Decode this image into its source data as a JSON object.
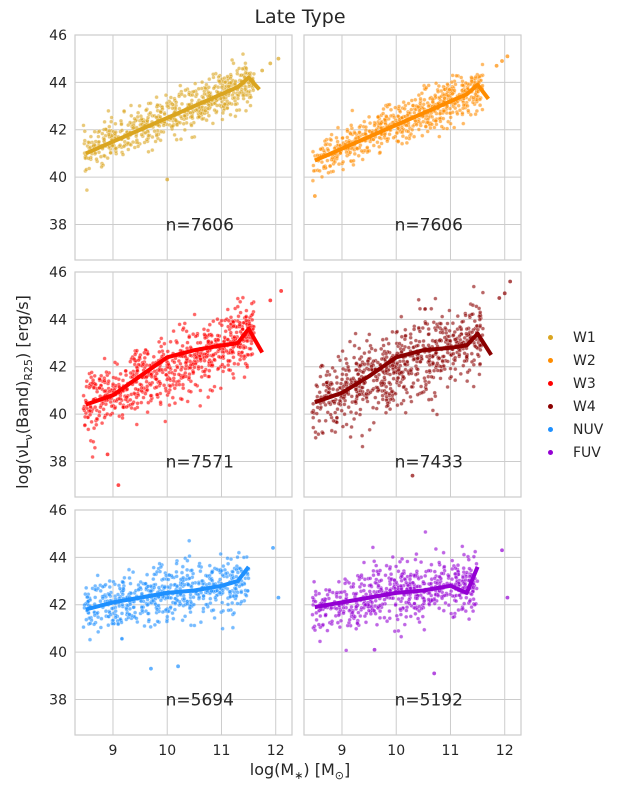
{
  "figure": {
    "title": "Late Type",
    "xlabel_main": "log(M",
    "xlabel_star": "∗",
    "xlabel_unit": ") [M",
    "xlabel_sun": "⊙",
    "xlabel_end": "]",
    "ylabel_main": "log(νL",
    "ylabel_nu": "ν",
    "ylabel_band": "(Band)",
    "ylabel_r25": "R25",
    "ylabel_unit": ") [erg/s]"
  },
  "legend": [
    {
      "label": "W1",
      "color": "#DAA520"
    },
    {
      "label": "W2",
      "color": "#FF8C00"
    },
    {
      "label": "W3",
      "color": "#FF0000"
    },
    {
      "label": "W4",
      "color": "#8B0000"
    },
    {
      "label": "NUV",
      "color": "#1E90FF"
    },
    {
      "label": "FUV",
      "color": "#9400D3"
    }
  ],
  "chart_data": {
    "type": "scatter",
    "xlim": [
      8.3,
      12.3
    ],
    "ylim": [
      36.5,
      46
    ],
    "xticks": [
      9,
      10,
      11,
      12
    ],
    "yticks": [
      38,
      40,
      42,
      44,
      46
    ],
    "grid": true,
    "legend_position": "right",
    "panels": [
      {
        "band": "W1",
        "color": "#DAA520",
        "count_label": "n=7606",
        "trend_x": [
          8.5,
          9.0,
          9.5,
          10.0,
          10.5,
          11.0,
          11.3,
          11.5,
          11.7
        ],
        "trend_y": [
          41.0,
          41.5,
          42.0,
          42.5,
          43.0,
          43.5,
          43.8,
          44.2,
          43.7
        ],
        "scatter": {
          "x_min": 8.45,
          "x_max": 11.6,
          "slope": 1.0,
          "intercept": 41.0,
          "x0": 8.5,
          "spread": 0.45,
          "n_points": 650,
          "outliers": [
            [
              11.9,
              44.8
            ],
            [
              12.05,
              45.0
            ],
            [
              11.75,
              44.5
            ],
            [
              10.0,
              39.9
            ]
          ]
        }
      },
      {
        "band": "W2",
        "color": "#FF8C00",
        "count_label": "n=7606",
        "trend_x": [
          8.5,
          9.0,
          9.5,
          10.0,
          10.5,
          11.0,
          11.3,
          11.5,
          11.7
        ],
        "trend_y": [
          40.7,
          41.2,
          41.7,
          42.2,
          42.7,
          43.2,
          43.5,
          43.9,
          43.3
        ],
        "scatter": {
          "x_min": 8.45,
          "x_max": 11.6,
          "slope": 1.0,
          "intercept": 40.7,
          "x0": 8.5,
          "spread": 0.45,
          "n_points": 650,
          "outliers": [
            [
              11.85,
              44.7
            ],
            [
              12.05,
              45.1
            ],
            [
              11.95,
              44.9
            ],
            [
              8.5,
              39.2
            ]
          ]
        }
      },
      {
        "band": "W3",
        "color": "#FF0000",
        "count_label": "n=7571",
        "trend_x": [
          8.5,
          9.0,
          9.5,
          10.0,
          10.5,
          11.0,
          11.3,
          11.5,
          11.75
        ],
        "trend_y": [
          40.4,
          40.8,
          41.6,
          42.4,
          42.7,
          42.9,
          43.0,
          43.6,
          42.6
        ],
        "scatter": {
          "x_min": 8.45,
          "x_max": 11.6,
          "slope": 0.95,
          "intercept": 40.4,
          "x0": 8.5,
          "spread": 0.7,
          "n_points": 750,
          "outliers": [
            [
              11.9,
              44.8
            ],
            [
              12.1,
              45.2
            ],
            [
              9.1,
              37.0
            ],
            [
              8.9,
              38.3
            ]
          ]
        }
      },
      {
        "band": "W4",
        "color": "#8B0000",
        "count_label": "n=7433",
        "trend_x": [
          8.5,
          9.0,
          9.5,
          10.0,
          10.5,
          11.0,
          11.3,
          11.5,
          11.75
        ],
        "trend_y": [
          40.5,
          40.9,
          41.6,
          42.4,
          42.7,
          42.8,
          42.9,
          43.4,
          42.5
        ],
        "scatter": {
          "x_min": 8.45,
          "x_max": 11.6,
          "slope": 0.95,
          "intercept": 40.5,
          "x0": 8.5,
          "spread": 0.8,
          "n_points": 750,
          "outliers": [
            [
              12.0,
              45.1
            ],
            [
              12.1,
              45.6
            ],
            [
              10.3,
              37.4
            ],
            [
              11.9,
              44.9
            ]
          ]
        }
      },
      {
        "band": "NUV",
        "color": "#1E90FF",
        "count_label": "n=5694",
        "trend_x": [
          8.5,
          9.0,
          9.5,
          10.0,
          10.5,
          11.0,
          11.3,
          11.5
        ],
        "trend_y": [
          41.8,
          42.1,
          42.3,
          42.5,
          42.6,
          42.8,
          43.0,
          43.6
        ],
        "scatter": {
          "x_min": 8.45,
          "x_max": 11.5,
          "slope": 0.4,
          "intercept": 41.8,
          "x0": 8.5,
          "spread": 0.6,
          "n_points": 600,
          "outliers": [
            [
              11.95,
              44.4
            ],
            [
              12.05,
              42.3
            ],
            [
              9.7,
              39.3
            ],
            [
              10.2,
              39.4
            ]
          ]
        }
      },
      {
        "band": "FUV",
        "color": "#9400D3",
        "count_label": "n=5192",
        "trend_x": [
          8.5,
          9.0,
          9.5,
          10.0,
          10.5,
          11.0,
          11.3,
          11.5
        ],
        "trend_y": [
          41.9,
          42.1,
          42.3,
          42.5,
          42.6,
          42.8,
          42.5,
          43.6
        ],
        "scatter": {
          "x_min": 8.45,
          "x_max": 11.5,
          "slope": 0.35,
          "intercept": 41.9,
          "x0": 8.5,
          "spread": 0.65,
          "n_points": 600,
          "outliers": [
            [
              11.95,
              44.3
            ],
            [
              12.05,
              42.3
            ],
            [
              10.7,
              39.1
            ],
            [
              9.6,
              40.1
            ]
          ]
        }
      }
    ]
  }
}
